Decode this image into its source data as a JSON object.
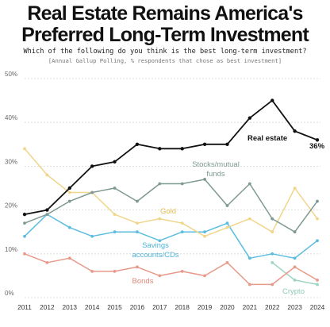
{
  "title_line1": "Real Estate Remains America's",
  "title_line2": "Preferred Long-Term Investment",
  "question": "Which of the following do you think is the best long-term investment?",
  "note": "[Annual Gallup Polling, % respondents that chose as best investment]",
  "end_label": "36%",
  "chart_data": {
    "type": "line",
    "x": [
      2011,
      2012,
      2013,
      2014,
      2015,
      2016,
      2017,
      2018,
      2019,
      2020,
      2021,
      2022,
      2023,
      2024
    ],
    "ylim": [
      0,
      50
    ],
    "yticks": [
      "0%",
      "10%",
      "20%",
      "30%",
      "40%",
      "50%"
    ],
    "grid": true,
    "series": [
      {
        "name": "Real estate",
        "color": "#111111",
        "values": [
          19,
          20,
          25,
          30,
          31,
          35,
          34,
          34,
          35,
          35,
          41,
          45,
          38,
          36
        ]
      },
      {
        "name": "Stocks/mutual funds",
        "color": "#7f9a93",
        "values": [
          17,
          19,
          22,
          24,
          25,
          22,
          26,
          26,
          27,
          21,
          26,
          18,
          15,
          22
        ]
      },
      {
        "name": "Gold",
        "color": "#f0d58a",
        "values": [
          34,
          28,
          24,
          24,
          19,
          17,
          18,
          17,
          14,
          16,
          18,
          15,
          25,
          18
        ]
      },
      {
        "name": "Savings accounts/CDs",
        "color": "#5bbde0",
        "values": [
          14,
          19,
          16,
          14,
          15,
          15,
          13,
          15,
          15,
          17,
          9,
          10,
          9,
          13
        ]
      },
      {
        "name": "Bonds",
        "color": "#e89a8a",
        "values": [
          10,
          8,
          9,
          6,
          6,
          7,
          5,
          6,
          5,
          8,
          3,
          3,
          7,
          4
        ]
      },
      {
        "name": "Crypto",
        "color": "#9fd4c2",
        "values": [
          null,
          null,
          null,
          null,
          null,
          null,
          null,
          null,
          null,
          null,
          null,
          8,
          4,
          3
        ]
      }
    ],
    "labels": {
      "real_estate": "Real estate",
      "stocks": [
        "Stocks/mutual",
        "funds"
      ],
      "gold": "Gold",
      "savings": [
        "Savings",
        "accounts/CDs"
      ],
      "bonds": "Bonds",
      "crypto": "Crypto"
    }
  }
}
